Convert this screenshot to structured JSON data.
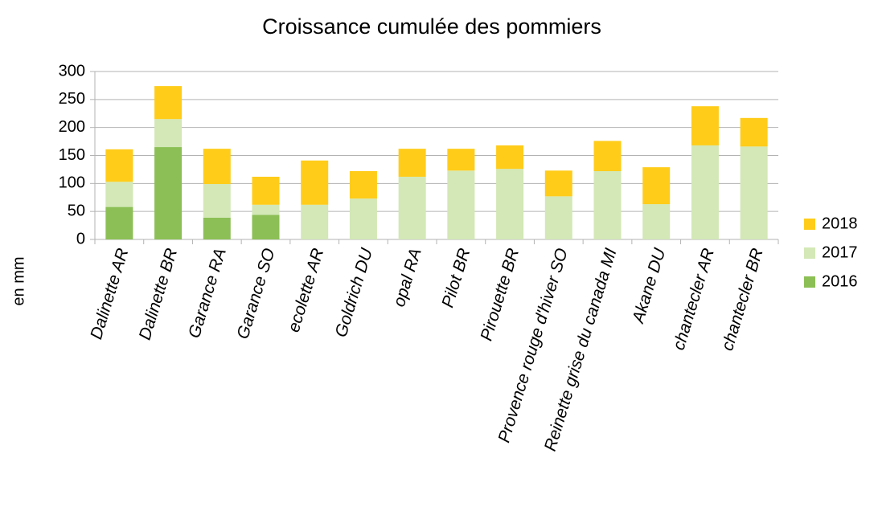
{
  "chart_data": {
    "type": "stacked_bar",
    "title": "Croissance cumulée des pommiers",
    "y_label": "en mm",
    "categories": [
      "Dalinette AR",
      "Dalinette BR",
      "Garance RA",
      "Garance SO",
      "ecolette AR",
      "Goldrich DU",
      "opal RA",
      "Pilot BR",
      "Pirouette BR",
      "Provence rouge d'hiver SO",
      "Reinette grise du canada MI",
      "Akane DU",
      "chantecler AR",
      "chantecler BR"
    ],
    "series": [
      {
        "name": "2016",
        "color": "#8cbf55",
        "values": [
          58,
          165,
          39,
          44,
          0,
          0,
          0,
          0,
          0,
          0,
          0,
          0,
          0,
          0
        ]
      },
      {
        "name": "2017",
        "color": "#d3e8b6",
        "values": [
          45,
          50,
          60,
          18,
          62,
          73,
          112,
          123,
          126,
          77,
          122,
          63,
          168,
          166
        ]
      },
      {
        "name": "2018",
        "color": "#ffcc1a",
        "values": [
          58,
          59,
          63,
          50,
          79,
          49,
          50,
          39,
          42,
          46,
          54,
          66,
          70,
          51
        ]
      }
    ],
    "ylim": [
      0,
      300
    ],
    "yticks": [
      0,
      50,
      100,
      150,
      200,
      250,
      300
    ],
    "grid": true,
    "legend": "right"
  }
}
